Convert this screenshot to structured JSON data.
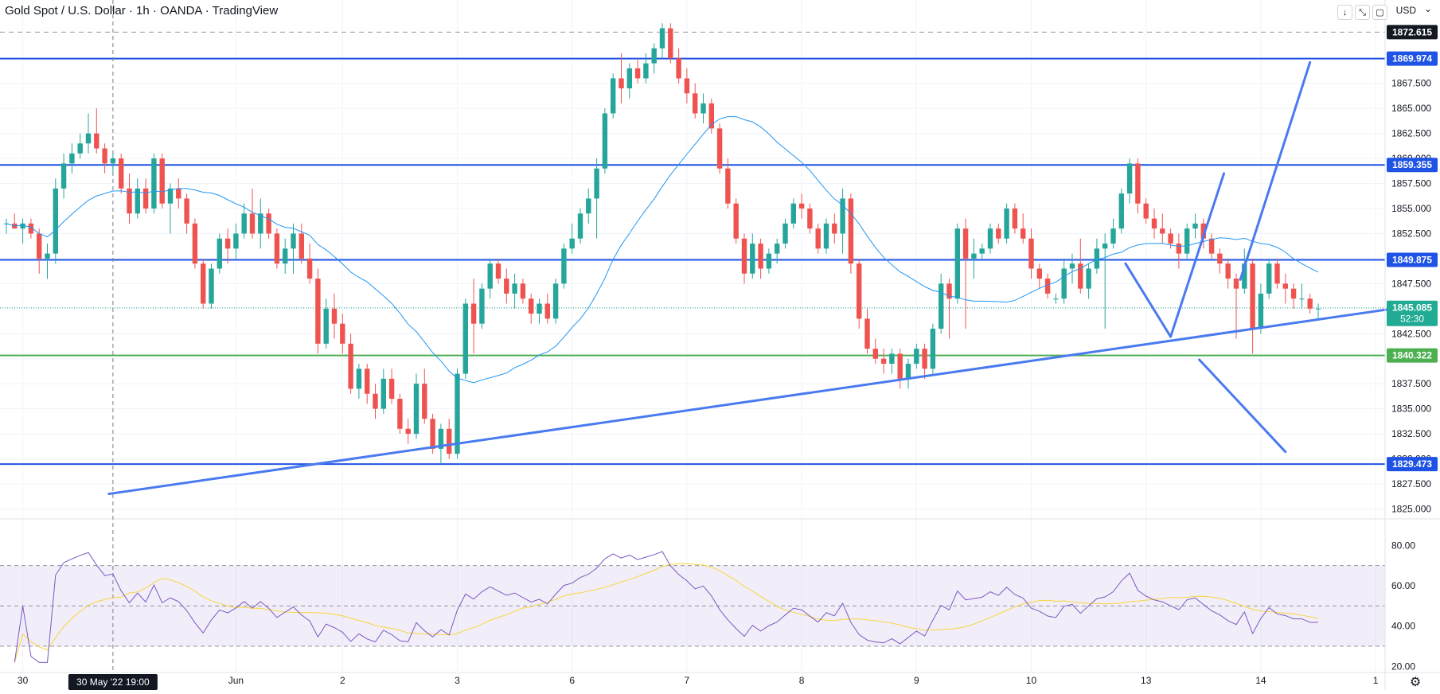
{
  "header": {
    "title": "Gold Spot / U.S. Dollar · 1h · OANDA · TradingView",
    "currency": "USD",
    "toolbar_icons": [
      "arrow-down-icon",
      "collapse-icon",
      "fullscreen-icon"
    ]
  },
  "chart_data": {
    "type": "candlestick",
    "instrument": "Gold Spot / U.S. Dollar",
    "interval": "1h",
    "source": "OANDA",
    "price_axis": {
      "ylim": [
        1824,
        1873.6
      ],
      "ticks": [
        1825.0,
        1827.5,
        1830.0,
        1832.5,
        1835.0,
        1837.5,
        1840.0,
        1842.5,
        1845.0,
        1847.5,
        1850.0,
        1852.5,
        1855.0,
        1857.5,
        1860.0,
        1862.5,
        1865.0,
        1867.5
      ]
    },
    "time_axis": {
      "ticks": [
        {
          "label": "30",
          "i": 2
        },
        {
          "label": "Jun",
          "i": 28
        },
        {
          "label": "2",
          "i": 41
        },
        {
          "label": "3",
          "i": 55
        },
        {
          "label": "6",
          "i": 69
        },
        {
          "label": "7",
          "i": 83
        },
        {
          "label": "8",
          "i": 97
        },
        {
          "label": "9",
          "i": 111
        },
        {
          "label": "10",
          "i": 125
        },
        {
          "label": "13",
          "i": 139
        },
        {
          "label": "14",
          "i": 153
        },
        {
          "label": "1",
          "i": 167
        }
      ],
      "crosshair_label": "30 May '22   19:00",
      "crosshair_i": 13
    },
    "candles": [
      [
        1853.5,
        1854,
        1852.5,
        1853.5
      ],
      [
        1853.5,
        1854.5,
        1853,
        1853
      ],
      [
        1853,
        1854,
        1851.5,
        1853.5
      ],
      [
        1853.5,
        1854,
        1852,
        1852.5
      ],
      [
        1852.5,
        1853,
        1848.5,
        1850
      ],
      [
        1850,
        1851.5,
        1848,
        1850.5
      ],
      [
        1850.5,
        1858,
        1849.5,
        1857
      ],
      [
        1857,
        1860.5,
        1856,
        1859.5
      ],
      [
        1859.5,
        1861.5,
        1858.5,
        1860.5
      ],
      [
        1860.5,
        1862.5,
        1860,
        1861.5
      ],
      [
        1861.5,
        1864.5,
        1860.5,
        1862.5
      ],
      [
        1862.5,
        1865,
        1860.5,
        1861
      ],
      [
        1861,
        1861.5,
        1858.5,
        1859.5
      ],
      [
        1859.5,
        1860.5,
        1858.5,
        1860
      ],
      [
        1860,
        1860.5,
        1856.5,
        1857
      ],
      [
        1857,
        1858.5,
        1853.5,
        1854.5
      ],
      [
        1854.5,
        1858,
        1854,
        1857
      ],
      [
        1857,
        1858,
        1854.5,
        1855
      ],
      [
        1855,
        1860.5,
        1854.5,
        1860
      ],
      [
        1860,
        1860.5,
        1855,
        1855.5
      ],
      [
        1855.5,
        1857.5,
        1852.5,
        1857
      ],
      [
        1857,
        1858,
        1855,
        1856
      ],
      [
        1856,
        1856.5,
        1852.5,
        1853.5
      ],
      [
        1853.5,
        1854,
        1849,
        1849.5
      ],
      [
        1849.5,
        1850,
        1845,
        1845.5
      ],
      [
        1845.5,
        1849.5,
        1845,
        1849
      ],
      [
        1849,
        1852.5,
        1848.5,
        1852
      ],
      [
        1852,
        1853,
        1849.5,
        1851
      ],
      [
        1851,
        1853.5,
        1850,
        1852.5
      ],
      [
        1852.5,
        1855.5,
        1852,
        1854.5
      ],
      [
        1854.5,
        1857,
        1852,
        1852.5
      ],
      [
        1852.5,
        1856,
        1851,
        1854.5
      ],
      [
        1854.5,
        1855,
        1852,
        1852.5
      ],
      [
        1852.5,
        1853,
        1849,
        1849.5
      ],
      [
        1849.5,
        1852,
        1848.5,
        1851
      ],
      [
        1851,
        1853.5,
        1848.5,
        1852.5
      ],
      [
        1852.5,
        1853.5,
        1849.5,
        1850
      ],
      [
        1850,
        1851.5,
        1847.5,
        1848
      ],
      [
        1848,
        1849,
        1840.5,
        1841.5
      ],
      [
        1841.5,
        1846,
        1841,
        1845
      ],
      [
        1845,
        1846.5,
        1842,
        1843.5
      ],
      [
        1843.5,
        1844.5,
        1840.5,
        1841.5
      ],
      [
        1841.5,
        1842.5,
        1836.5,
        1837
      ],
      [
        1837,
        1839.5,
        1836,
        1839
      ],
      [
        1839,
        1839.5,
        1835.5,
        1836.5
      ],
      [
        1836.5,
        1837.5,
        1834,
        1835
      ],
      [
        1835,
        1839,
        1834.5,
        1838
      ],
      [
        1838,
        1839,
        1835.5,
        1836
      ],
      [
        1836,
        1836.5,
        1832.5,
        1833
      ],
      [
        1833,
        1834,
        1831.5,
        1832.5
      ],
      [
        1832.5,
        1838.5,
        1832,
        1837.5
      ],
      [
        1837.5,
        1839,
        1833.5,
        1834
      ],
      [
        1834,
        1834.5,
        1830.5,
        1831
      ],
      [
        1831,
        1833.5,
        1829.5,
        1833
      ],
      [
        1833,
        1834,
        1830,
        1830.5
      ],
      [
        1830.5,
        1839,
        1830,
        1838.5
      ],
      [
        1838.5,
        1846,
        1838,
        1845.5
      ],
      [
        1845.5,
        1848,
        1840.5,
        1843.5
      ],
      [
        1843.5,
        1847.5,
        1843,
        1847
      ],
      [
        1847,
        1850,
        1846,
        1849.5
      ],
      [
        1849.5,
        1850,
        1847.5,
        1848
      ],
      [
        1848,
        1849,
        1845.5,
        1846.5
      ],
      [
        1846.5,
        1848.5,
        1845,
        1847.5
      ],
      [
        1847.5,
        1848,
        1845.5,
        1846
      ],
      [
        1846,
        1846.5,
        1843.5,
        1844.5
      ],
      [
        1844.5,
        1846,
        1843.5,
        1845.5
      ],
      [
        1845.5,
        1846.5,
        1843.5,
        1844
      ],
      [
        1844,
        1848,
        1843.5,
        1847.5
      ],
      [
        1847.5,
        1851.5,
        1847,
        1851
      ],
      [
        1851,
        1853.5,
        1850.5,
        1852
      ],
      [
        1852,
        1855,
        1851.5,
        1854.5
      ],
      [
        1854.5,
        1857,
        1853.5,
        1856
      ],
      [
        1856,
        1860,
        1852,
        1859
      ],
      [
        1859,
        1865,
        1858.5,
        1864.5
      ],
      [
        1864.5,
        1868.5,
        1864,
        1868
      ],
      [
        1868,
        1870.5,
        1865.5,
        1867
      ],
      [
        1867,
        1869.5,
        1866,
        1869
      ],
      [
        1869,
        1870,
        1867.5,
        1868
      ],
      [
        1868,
        1870.5,
        1867.5,
        1869.5
      ],
      [
        1869.5,
        1871.5,
        1868.5,
        1871
      ],
      [
        1871,
        1873.5,
        1870,
        1873
      ],
      [
        1873,
        1873.5,
        1869.5,
        1870
      ],
      [
        1870,
        1871,
        1867.5,
        1868
      ],
      [
        1868,
        1869,
        1865.5,
        1866.5
      ],
      [
        1866.5,
        1867.5,
        1864,
        1864.5
      ],
      [
        1864.5,
        1866.5,
        1863.5,
        1865.5
      ],
      [
        1865.5,
        1866,
        1862.5,
        1863
      ],
      [
        1863,
        1863.5,
        1858.5,
        1859
      ],
      [
        1859,
        1860,
        1855,
        1855.5
      ],
      [
        1855.5,
        1856,
        1851.5,
        1852
      ],
      [
        1852,
        1852.5,
        1847.5,
        1848.5
      ],
      [
        1848.5,
        1852.5,
        1848,
        1851.5
      ],
      [
        1851.5,
        1852,
        1848,
        1849
      ],
      [
        1849,
        1851,
        1848.5,
        1850.5
      ],
      [
        1850.5,
        1852,
        1849.5,
        1851.5
      ],
      [
        1851.5,
        1854,
        1851,
        1853.5
      ],
      [
        1853.5,
        1856,
        1853,
        1855.5
      ],
      [
        1855.5,
        1856.5,
        1854,
        1855
      ],
      [
        1855,
        1855.5,
        1852.5,
        1853
      ],
      [
        1853,
        1853.5,
        1850.5,
        1851
      ],
      [
        1851,
        1854,
        1850.5,
        1853.5
      ],
      [
        1853.5,
        1854.5,
        1851.5,
        1852.5
      ],
      [
        1852.5,
        1857,
        1850.5,
        1856
      ],
      [
        1856,
        1856.5,
        1848.5,
        1849.5
      ],
      [
        1849.5,
        1850,
        1843,
        1844
      ],
      [
        1844,
        1845,
        1840.5,
        1841
      ],
      [
        1841,
        1842,
        1839.5,
        1840
      ],
      [
        1840,
        1841,
        1838.5,
        1839.5
      ],
      [
        1839.5,
        1841,
        1838.5,
        1840.5
      ],
      [
        1840.5,
        1841,
        1837,
        1838
      ],
      [
        1838,
        1840,
        1837,
        1839.5
      ],
      [
        1839.5,
        1841.5,
        1839,
        1841
      ],
      [
        1841,
        1841.5,
        1838,
        1839
      ],
      [
        1839,
        1843.5,
        1838.5,
        1843
      ],
      [
        1843,
        1848.5,
        1842.5,
        1847.5
      ],
      [
        1847.5,
        1848,
        1842,
        1846
      ],
      [
        1846,
        1853.5,
        1845.5,
        1853
      ],
      [
        1853,
        1854,
        1843,
        1850
      ],
      [
        1850,
        1852,
        1848,
        1850.5
      ],
      [
        1850.5,
        1851.5,
        1850,
        1851
      ],
      [
        1851,
        1853.5,
        1850.5,
        1853
      ],
      [
        1853,
        1853.5,
        1851.5,
        1852
      ],
      [
        1852,
        1855.5,
        1851.5,
        1855
      ],
      [
        1855,
        1855.5,
        1852.5,
        1853
      ],
      [
        1853,
        1854.5,
        1851.5,
        1852
      ],
      [
        1852,
        1853,
        1848,
        1849
      ],
      [
        1849,
        1849.5,
        1847,
        1848
      ],
      [
        1848,
        1848.5,
        1846,
        1846.5
      ],
      [
        1846,
        1846.5,
        1845.5,
        1846
      ],
      [
        1846,
        1850,
        1845.5,
        1849
      ],
      [
        1849,
        1850.5,
        1847.5,
        1849.5
      ],
      [
        1849.5,
        1852,
        1846.5,
        1847
      ],
      [
        1847,
        1849.5,
        1846,
        1849
      ],
      [
        1849,
        1852,
        1848.5,
        1851
      ],
      [
        1851,
        1852.5,
        1843,
        1851.5
      ],
      [
        1851.5,
        1854,
        1851,
        1853
      ],
      [
        1853,
        1857,
        1852.5,
        1856.5
      ],
      [
        1856.5,
        1860,
        1855.5,
        1859.5
      ],
      [
        1859.5,
        1860,
        1854.5,
        1855.5
      ],
      [
        1855.5,
        1856,
        1853.5,
        1854
      ],
      [
        1854,
        1855,
        1852,
        1853
      ],
      [
        1853,
        1854.5,
        1851.5,
        1852.5
      ],
      [
        1852.5,
        1853,
        1851,
        1851.5
      ],
      [
        1851.5,
        1852.5,
        1849,
        1850.5
      ],
      [
        1850.5,
        1853.5,
        1850,
        1853
      ],
      [
        1853,
        1854.5,
        1852,
        1853.5
      ],
      [
        1853.5,
        1854,
        1851,
        1852
      ],
      [
        1852,
        1852.5,
        1850,
        1850.5
      ],
      [
        1850.5,
        1851,
        1848.5,
        1849.5
      ],
      [
        1849.5,
        1850,
        1847,
        1848
      ],
      [
        1848,
        1848.5,
        1842,
        1847
      ],
      [
        1847,
        1851,
        1846.5,
        1849.5
      ],
      [
        1849.5,
        1850,
        1840.5,
        1843
      ],
      [
        1843,
        1847.5,
        1842.5,
        1846.5
      ],
      [
        1846.5,
        1850,
        1846,
        1849.5
      ],
      [
        1849.5,
        1850,
        1847,
        1847.5
      ],
      [
        1847.5,
        1848.5,
        1845.5,
        1847
      ],
      [
        1847,
        1847.5,
        1845,
        1846
      ],
      [
        1846,
        1847.5,
        1845,
        1846
      ],
      [
        1846,
        1846.5,
        1844.5,
        1845
      ],
      [
        1845,
        1845.5,
        1844,
        1845
      ]
    ],
    "candles_columns": [
      "open",
      "high",
      "low",
      "close"
    ],
    "horizontal_levels": [
      {
        "price": 1872.615,
        "label": "1872.615",
        "style": "dashed",
        "color": "#131722"
      },
      {
        "price": 1869.974,
        "label": "1869.974",
        "style": "solid",
        "color": "#1e53e5"
      },
      {
        "price": 1859.355,
        "label": "1859.355",
        "style": "solid",
        "color": "#1e53e5"
      },
      {
        "price": 1849.875,
        "label": "1849.875",
        "style": "solid",
        "color": "#1e53e5"
      },
      {
        "price": 1840.322,
        "label": "1840.322",
        "style": "solid",
        "color": "#4caf50"
      },
      {
        "price": 1829.473,
        "label": "1829.473",
        "style": "solid",
        "color": "#1e53e5"
      }
    ],
    "last_price": {
      "price": 1845.085,
      "label": "1845.085",
      "countdown": "52:30",
      "color": "#22ab94"
    },
    "drawings": [
      {
        "name": "ascending-trendline",
        "color": "#4a7af0",
        "points": [
          [
            12.5,
            1826.5
          ],
          [
            170,
            1845.1
          ]
        ]
      },
      {
        "name": "projection-down-to-trendline",
        "color": "#4a7af0",
        "points": [
          [
            136.5,
            1849.5
          ],
          [
            142,
            1842.2
          ]
        ]
      },
      {
        "name": "projection-up-from-trendline",
        "color": "#4a7af0",
        "points": [
          [
            142,
            1842.2
          ],
          [
            148.5,
            1858.5
          ]
        ]
      },
      {
        "name": "projection-up-to-top-level",
        "color": "#4a7af0",
        "points": [
          [
            150.5,
            1847.9
          ],
          [
            159,
            1869.6
          ]
        ]
      },
      {
        "name": "projection-down-below-green",
        "color": "#4a7af0",
        "points": [
          [
            145.5,
            1839.9
          ],
          [
            156,
            1830.7
          ]
        ]
      }
    ],
    "indicator": {
      "type": "line",
      "ylim": [
        17,
        88
      ],
      "ticks": [
        20.0,
        40.0,
        60.0,
        80.0
      ],
      "band": [
        30,
        70
      ],
      "midline": 50,
      "band_color": "#7e57c2",
      "rsi_color": "#7e57c2",
      "signal_color": "#f5d63d"
    }
  }
}
